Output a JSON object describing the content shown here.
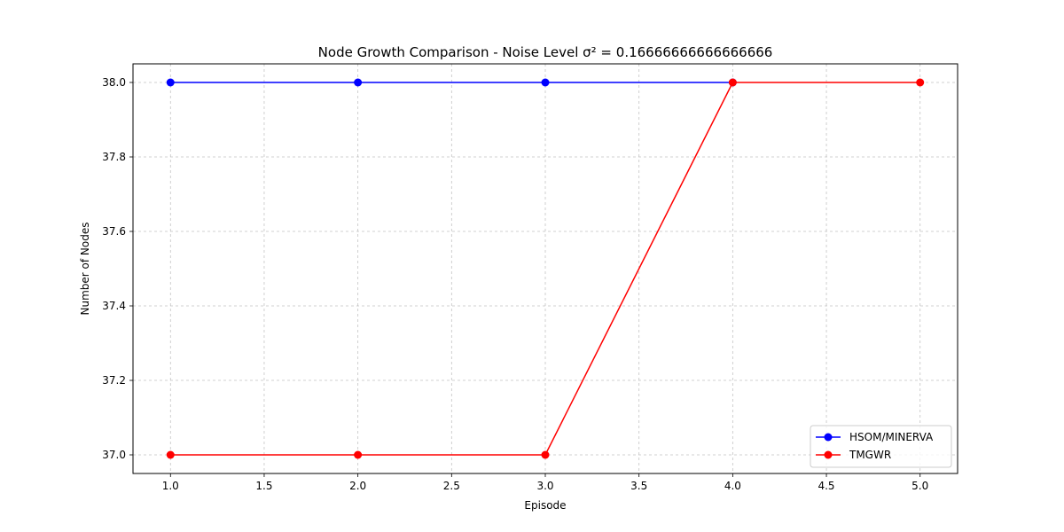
{
  "chart_data": {
    "type": "line",
    "title": "Node Growth Comparison - Noise Level σ² = 0.16666666666666666",
    "xlabel": "Episode",
    "ylabel": "Number of Nodes",
    "xlim": [
      0.8,
      5.2
    ],
    "ylim": [
      36.95,
      38.05
    ],
    "xticks": [
      1.0,
      1.5,
      2.0,
      2.5,
      3.0,
      3.5,
      4.0,
      4.5,
      5.0
    ],
    "xtick_labels": [
      "1.0",
      "1.5",
      "2.0",
      "2.5",
      "3.0",
      "3.5",
      "4.0",
      "4.5",
      "5.0"
    ],
    "yticks": [
      37.0,
      37.2,
      37.4,
      37.6,
      37.8,
      38.0
    ],
    "ytick_labels": [
      "37.0",
      "37.2",
      "37.4",
      "37.6",
      "37.8",
      "38.0"
    ],
    "grid": true,
    "legend_position": "bottom-right",
    "x": [
      1,
      2,
      3,
      4,
      5
    ],
    "series": [
      {
        "name": "HSOM/MINERVA",
        "color": "#0000ff",
        "marker": "circle",
        "x": [
          1,
          2,
          3,
          4
        ],
        "values": [
          38,
          38,
          38,
          38
        ]
      },
      {
        "name": "TMGWR",
        "color": "#ff0000",
        "marker": "circle",
        "x": [
          1,
          2,
          3,
          4,
          5
        ],
        "values": [
          37,
          37,
          37,
          38,
          38
        ]
      }
    ]
  }
}
